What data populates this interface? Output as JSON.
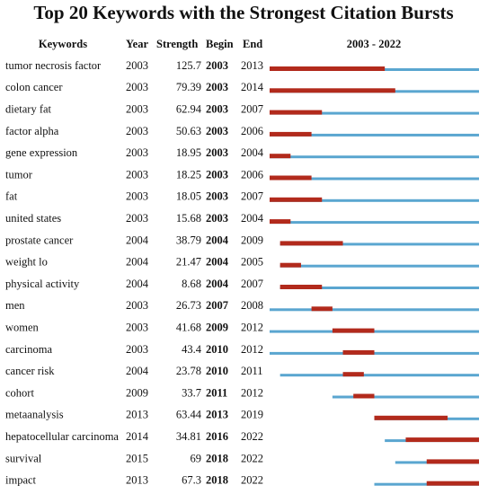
{
  "title": "Top 20 Keywords with the Strongest Citation Bursts",
  "table": {
    "header": [
      "Keywords",
      "Year",
      "Strength",
      "Begin",
      "End",
      "2003 - 2022"
    ],
    "rows": [
      [
        "tumor necrosis factor",
        2003,
        125.7,
        2003,
        2013
      ],
      [
        "colon cancer",
        2003,
        79.39,
        2003,
        2014
      ],
      [
        "dietary fat",
        2003,
        62.94,
        2003,
        2007
      ],
      [
        "factor alpha",
        2003,
        50.63,
        2003,
        2006
      ],
      [
        "gene expression",
        2003,
        18.95,
        2003,
        2004
      ],
      [
        "tumor",
        2003,
        18.25,
        2003,
        2006
      ],
      [
        "fat",
        2003,
        18.05,
        2003,
        2007
      ],
      [
        "united states",
        2003,
        15.68,
        2003,
        2004
      ],
      [
        "prostate cancer",
        2004,
        38.79,
        2004,
        2009
      ],
      [
        "weight lo",
        2004,
        21.47,
        2004,
        2005
      ],
      [
        "physical activity",
        2004,
        8.68,
        2004,
        2007
      ],
      [
        "men",
        2003,
        26.73,
        2007,
        2008
      ],
      [
        "women",
        2003,
        41.68,
        2009,
        2012
      ],
      [
        "carcinoma",
        2003,
        43.4,
        2010,
        2012
      ],
      [
        "cancer risk",
        2004,
        23.78,
        2010,
        2011
      ],
      [
        "cohort",
        2009,
        33.7,
        2011,
        2012
      ],
      [
        "metaanalysis",
        2013,
        63.44,
        2013,
        2019
      ],
      [
        "hepatocellular carcinoma",
        2014,
        34.81,
        2016,
        2022
      ],
      [
        "survival",
        2015,
        69,
        2018,
        2022
      ],
      [
        "impact",
        2013,
        67.3,
        2018,
        2022
      ]
    ]
  }
}
